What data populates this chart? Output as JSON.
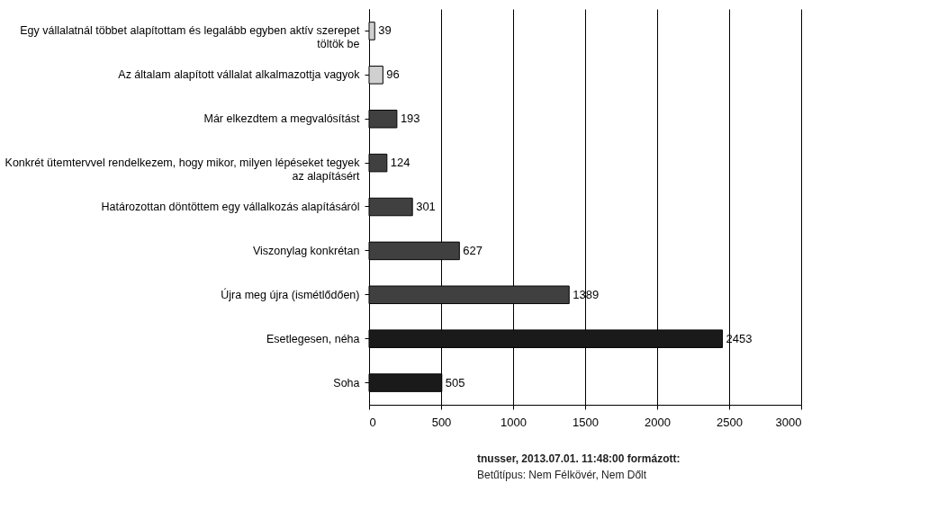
{
  "chart_data": {
    "type": "bar",
    "orientation": "horizontal",
    "categories": [
      "Egy vállalatnál többet alapítottam és legalább egyben aktív szerepet töltök be",
      "Az általam alapított vállalat alkalmazottja vagyok",
      "Már elkezdtem a megvalósítást",
      "Konkrét ütemtervvel rendelkezem, hogy mikor, milyen lépéseket tegyek az alapításért",
      "Határozottan döntöttem egy vállalkozás alapításáról",
      "Viszonylag konkrétan",
      "Újra meg újra (ismétlődően)",
      "Esetlegesen, néha",
      "Soha"
    ],
    "values": [
      39,
      96,
      193,
      124,
      301,
      627,
      1389,
      2453,
      505
    ],
    "colors": [
      "#d0d0d0",
      "#d0d0d0",
      "#404040",
      "#404040",
      "#404040",
      "#404040",
      "#404040",
      "#1a1a1a",
      "#1a1a1a"
    ],
    "xlim": [
      0,
      3000
    ],
    "xticks": [
      0,
      500,
      1000,
      1500,
      2000,
      2500,
      3000
    ],
    "grid": "x",
    "data_labels": true,
    "annotations": [
      "tnusser, 2013.07.01. 11:48:00 formázott:",
      "Betűtípus: Nem Félkövér, Nem Dőlt"
    ]
  }
}
